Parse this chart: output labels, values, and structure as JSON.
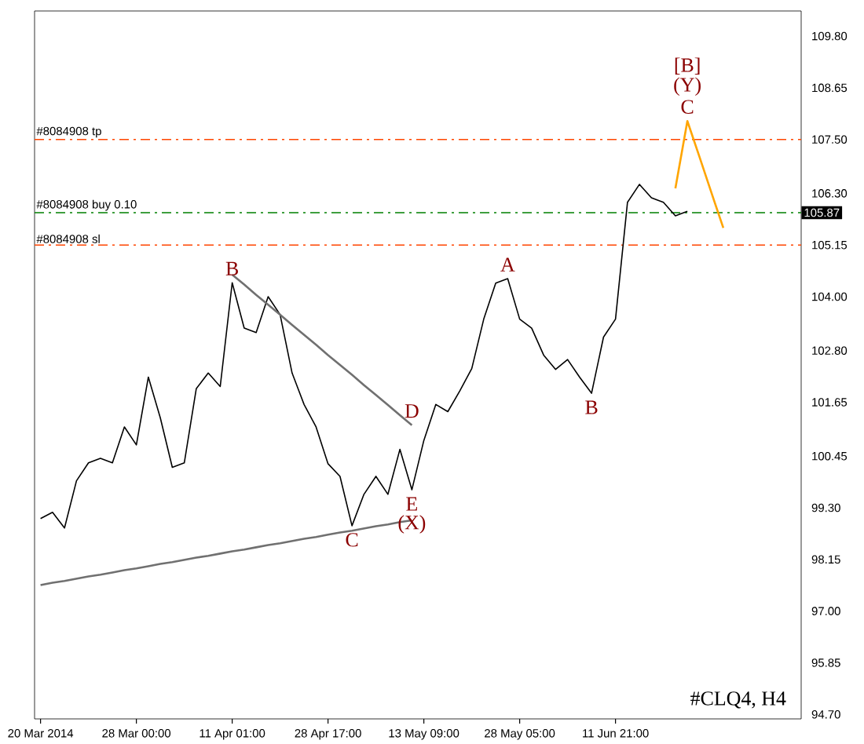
{
  "chart_data": {
    "type": "line",
    "categories": [
      "20 Mar 2014",
      null,
      null,
      null,
      null,
      null,
      null,
      null,
      "28 Mar 00:00",
      null,
      null,
      null,
      null,
      null,
      null,
      null,
      "11 Apr 01:00",
      null,
      null,
      null,
      null,
      null,
      null,
      null,
      "28 Apr 17:00",
      null,
      null,
      null,
      null,
      null,
      null,
      null,
      "13 May 09:00",
      null,
      null,
      null,
      null,
      null,
      null,
      null,
      "28 May 05:00",
      null,
      null,
      null,
      null,
      null,
      null,
      null,
      "11 Jun 21:00",
      null,
      null,
      null,
      null,
      null,
      null,
      null,
      null,
      null,
      null,
      null,
      null,
      null,
      null,
      null
    ],
    "ylim": [
      94.6,
      110.36
    ],
    "yticks": [
      {
        "value": 109.8,
        "label": "109.80"
      },
      {
        "value": 108.65,
        "label": "108.65"
      },
      {
        "value": 107.5,
        "label": "107.50"
      },
      {
        "value": 106.3,
        "label": "106.30"
      },
      {
        "value": 105.15,
        "label": "105.15"
      },
      {
        "value": 104.0,
        "label": "104.00"
      },
      {
        "value": 102.8,
        "label": "102.80"
      },
      {
        "value": 101.65,
        "label": "101.65"
      },
      {
        "value": 100.45,
        "label": "100.45"
      },
      {
        "value": 99.3,
        "label": "99.30"
      },
      {
        "value": 98.15,
        "label": "98.15"
      },
      {
        "value": 97.0,
        "label": "97.00"
      },
      {
        "value": 95.85,
        "label": "95.85"
      },
      {
        "value": 94.7,
        "label": "94.70"
      }
    ],
    "marker": "none",
    "series": [
      {
        "color": "#000000",
        "values": [
          99.06,
          99.2,
          98.85,
          99.9,
          100.3,
          100.4,
          100.3,
          101.1,
          100.7,
          102.21,
          101.3,
          100.2,
          100.3,
          101.95,
          102.3,
          102.0,
          104.31,
          103.3,
          103.2,
          104.0,
          103.6,
          102.3,
          101.6,
          101.1,
          100.28,
          100.0,
          98.9,
          99.6,
          100.0,
          99.6,
          100.6,
          99.7,
          100.8,
          101.6,
          101.44,
          101.9,
          102.4,
          103.5,
          104.3,
          104.4,
          103.5,
          103.3,
          102.7,
          102.38,
          102.6,
          102.21,
          101.85,
          103.1,
          103.5,
          106.1,
          106.5,
          106.2,
          106.1,
          105.8,
          105.9,
          null,
          null,
          null,
          null,
          null,
          null,
          null,
          null,
          null
        ]
      },
      {
        "color": "#707070",
        "values": [
          null,
          null,
          null,
          null,
          null,
          null,
          null,
          null,
          null,
          null,
          null,
          null,
          null,
          null,
          null,
          null,
          104.49,
          104.27,
          104.04,
          103.82,
          103.6,
          103.37,
          103.15,
          102.93,
          102.7,
          102.48,
          102.26,
          102.03,
          101.81,
          101.59,
          101.36,
          101.14,
          null,
          null,
          null,
          null,
          null,
          null,
          null,
          null,
          null,
          null,
          null,
          null,
          null,
          null,
          null,
          null,
          null,
          null,
          null,
          null,
          null,
          null,
          null,
          null,
          null,
          null,
          null,
          null,
          null,
          null,
          null,
          null
        ]
      },
      {
        "color": "#707070",
        "values": [
          97.58,
          97.63,
          97.67,
          97.72,
          97.77,
          97.81,
          97.86,
          97.91,
          97.95,
          98.0,
          98.05,
          98.09,
          98.14,
          98.19,
          98.23,
          98.28,
          98.33,
          98.37,
          98.42,
          98.47,
          98.51,
          98.56,
          98.61,
          98.65,
          98.7,
          98.75,
          98.79,
          98.84,
          98.89,
          98.93,
          98.98,
          99.02,
          null,
          null,
          null,
          null,
          null,
          null,
          null,
          null,
          null,
          null,
          null,
          null,
          null,
          null,
          null,
          null,
          null,
          null,
          null,
          null,
          null,
          null,
          null,
          null,
          null,
          null,
          null,
          null,
          null,
          null,
          null,
          null
        ]
      },
      {
        "color": "#ffa500",
        "values": [
          null,
          null,
          null,
          null,
          null,
          null,
          null,
          null,
          null,
          null,
          null,
          null,
          null,
          null,
          null,
          null,
          null,
          null,
          null,
          null,
          null,
          null,
          null,
          null,
          null,
          null,
          null,
          null,
          null,
          null,
          null,
          null,
          null,
          null,
          null,
          null,
          null,
          null,
          null,
          null,
          null,
          null,
          null,
          null,
          null,
          null,
          null,
          null,
          null,
          null,
          null,
          null,
          null,
          106.41,
          107.91,
          107.12,
          106.32,
          105.53,
          null,
          null,
          null,
          null,
          null,
          null
        ]
      }
    ],
    "ref_lines": [
      {
        "axis": "y",
        "value": 107.5,
        "label": "#8084908 tp",
        "color": "#ff4500",
        "line_style": "dashed"
      },
      {
        "axis": "y",
        "value": 105.87,
        "label": "#8084908 buy 0.10",
        "color": "#008000",
        "line_style": "dashed"
      },
      {
        "axis": "y",
        "value": 105.15,
        "label": "#8084908 sl",
        "color": "#ff4500",
        "line_style": "dashed"
      }
    ],
    "annotations": [
      {
        "text": "B",
        "y": 104.31
      },
      {
        "text": "C",
        "y": 98.9
      },
      {
        "text": "D",
        "y": 101.14
      },
      {
        "text": "E",
        "y": 99.7
      },
      {
        "text": "(X)",
        "y": 99.7
      },
      {
        "text": "A",
        "y": 104.4
      },
      {
        "text": "B",
        "y": 101.85
      },
      {
        "text": "[B]",
        "y": 107.91
      },
      {
        "text": "(Y)",
        "y": 107.91
      },
      {
        "text": "C",
        "y": 107.91
      },
      {
        "text": "105.87",
        "y": 105.87
      },
      "#CLQ4, H4"
    ]
  }
}
